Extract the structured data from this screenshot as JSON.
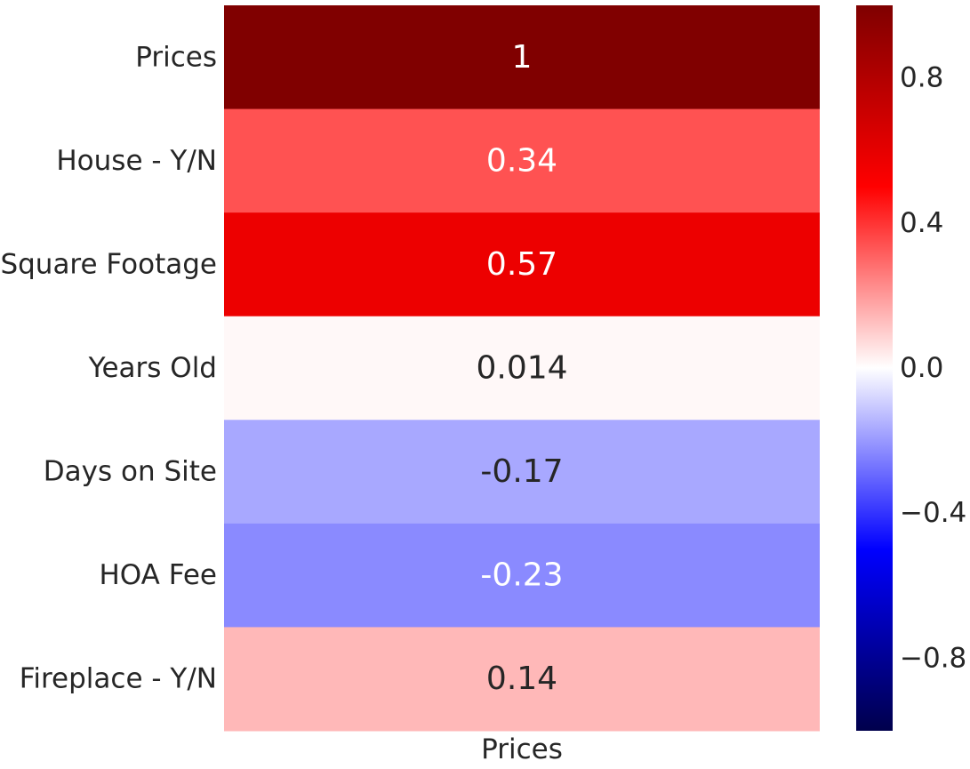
{
  "chart_data": {
    "type": "heatmap",
    "columns": [
      "Prices"
    ],
    "rows": [
      "Prices",
      "House - Y/N",
      "Square Footage",
      "Years Old",
      "Days on Site",
      "HOA Fee",
      "Fireplace - Y/N"
    ],
    "values": [
      1,
      0.34,
      0.57,
      0.014,
      -0.17,
      -0.23,
      0.14
    ],
    "cell_labels": [
      "1",
      "0.34",
      "0.57",
      "0.014",
      "-0.17",
      "-0.23",
      "0.14"
    ],
    "colormap": "seismic",
    "vmin": -1,
    "vmax": 1,
    "colorbar": {
      "ticks": [
        0.8,
        0.4,
        0.0,
        -0.4,
        -0.8
      ],
      "tick_labels": [
        "0.8",
        "0.4",
        "0.0",
        "−0.4",
        "−0.8"
      ]
    },
    "colors": {
      "text_dark": "#262626",
      "text_light": "#ffffff"
    }
  }
}
